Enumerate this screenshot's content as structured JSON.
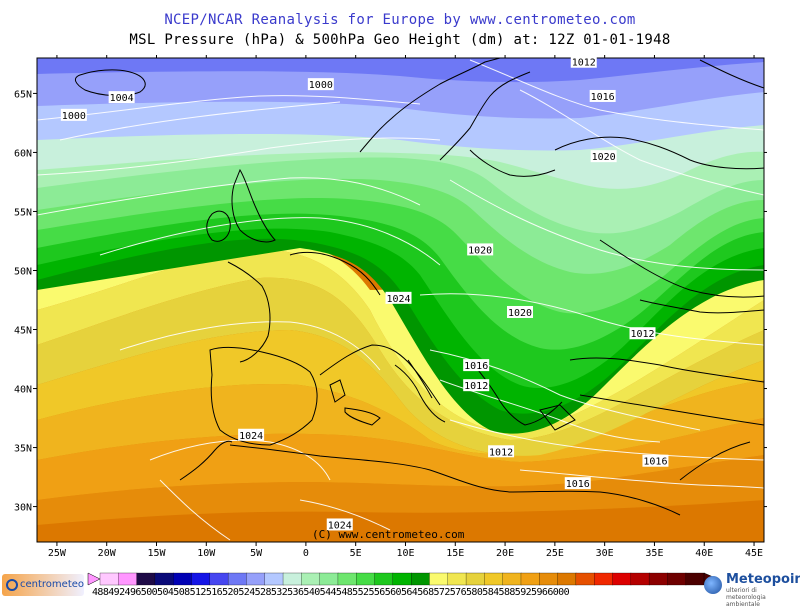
{
  "header": {
    "title": "NCEP/NCAR Reanalysis for Europe by www.centrometeo.com",
    "subtitle": "MSL Pressure (hPa) & 500hPa Geo Height (dm) at: 12Z 01-01-1948"
  },
  "map": {
    "lon_range": [
      -27,
      46
    ],
    "lat_range": [
      27,
      68
    ],
    "lon_ticks": [
      {
        "v": -25,
        "t": "25W"
      },
      {
        "v": -20,
        "t": "20W"
      },
      {
        "v": -15,
        "t": "15W"
      },
      {
        "v": -10,
        "t": "10W"
      },
      {
        "v": -5,
        "t": "5W"
      },
      {
        "v": 0,
        "t": "0"
      },
      {
        "v": 5,
        "t": "5E"
      },
      {
        "v": 10,
        "t": "10E"
      },
      {
        "v": 15,
        "t": "15E"
      },
      {
        "v": 20,
        "t": "20E"
      },
      {
        "v": 25,
        "t": "25E"
      },
      {
        "v": 30,
        "t": "30E"
      },
      {
        "v": 35,
        "t": "35E"
      },
      {
        "v": 40,
        "t": "40E"
      },
      {
        "v": 45,
        "t": "45E"
      }
    ],
    "lat_ticks": [
      {
        "v": 65,
        "t": "65N"
      },
      {
        "v": 60,
        "t": "60N"
      },
      {
        "v": 55,
        "t": "55N"
      },
      {
        "v": 50,
        "t": "50N"
      },
      {
        "v": 45,
        "t": "45N"
      },
      {
        "v": 40,
        "t": "40N"
      },
      {
        "v": 35,
        "t": "35N"
      },
      {
        "v": 30,
        "t": "30N"
      }
    ],
    "isobar_labels": [
      {
        "t": "1012",
        "lon": 27.9,
        "lat": 67.6
      },
      {
        "t": "1004",
        "lon": -18.5,
        "lat": 64.6
      },
      {
        "t": "1000",
        "lon": -23.3,
        "lat": 63.1
      },
      {
        "t": "1000",
        "lon": 1.5,
        "lat": 65.7
      },
      {
        "t": "1016",
        "lon": 29.8,
        "lat": 64.7
      },
      {
        "t": "1020",
        "lon": 29.9,
        "lat": 59.6
      },
      {
        "t": "1020",
        "lon": 17.5,
        "lat": 51.7
      },
      {
        "t": "1024",
        "lon": 9.3,
        "lat": 47.6
      },
      {
        "t": "1020",
        "lon": 21.5,
        "lat": 46.4
      },
      {
        "t": "1012",
        "lon": 33.8,
        "lat": 44.6
      },
      {
        "t": "1016",
        "lon": 17.1,
        "lat": 41.9
      },
      {
        "t": "1012",
        "lon": 17.1,
        "lat": 40.2
      },
      {
        "t": "1012",
        "lon": 19.6,
        "lat": 34.6
      },
      {
        "t": "1016",
        "lon": 35.1,
        "lat": 33.8
      },
      {
        "t": "1024",
        "lon": -5.5,
        "lat": 36.0
      },
      {
        "t": "1016",
        "lon": 27.3,
        "lat": 31.9
      },
      {
        "t": "1024",
        "lon": 3.4,
        "lat": 28.4
      }
    ],
    "copyright": "(C) www.centrometeo.com"
  },
  "legend": {
    "colors": [
      "#ffc8ff",
      "#ff96ff",
      "#1e0a46",
      "#0a0a78",
      "#0000b4",
      "#1414e6",
      "#4646f0",
      "#6e78f5",
      "#96a0fa",
      "#b4c8ff",
      "#c8f0dc",
      "#aaf0b4",
      "#8ceb96",
      "#6ee66e",
      "#46dc46",
      "#1ec81e",
      "#00b400",
      "#009600",
      "#fafa6e",
      "#f0e650",
      "#e6d23c",
      "#f0c828",
      "#f0b41e",
      "#f0a014",
      "#e68c0a",
      "#dc7800",
      "#e65000",
      "#f02800",
      "#dc0000",
      "#b40000",
      "#8c0000",
      "#6e0000",
      "#4b0000"
    ],
    "labels_text": "4884924965005045085125165205245285325365405445485525565605645685725765805845885925966000"
  },
  "branding": {
    "left_logo": "centrometeo",
    "right_logo": "Meteopoint",
    "right_sub": "ulteriori di meteorologia ambientale"
  }
}
